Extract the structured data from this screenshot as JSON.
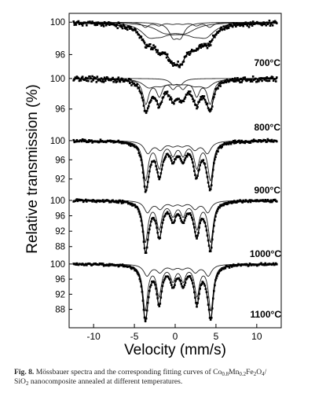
{
  "chart_data": {
    "type": "line",
    "ylabel": "Relative transmission (%)",
    "xlabel": "Velocity (mm/s)",
    "xlim": [
      -13,
      13
    ],
    "x_ticks": [
      -10,
      -5,
      0,
      5,
      10
    ],
    "x_tick_labels": [
      "-10",
      "-5",
      "0",
      "5",
      "10"
    ],
    "grid": false,
    "legend": "none",
    "panels": [
      {
        "label": "700°C",
        "ylim": [
          94.0,
          100.8
        ],
        "y_ticks": [
          100,
          96
        ],
        "y_tick_labels": [
          "100",
          "96"
        ],
        "sextets": [
          {
            "center": 0.3,
            "split": 7.9,
            "depth": 0.6,
            "width": 0.5
          },
          {
            "center": 0.3,
            "split": 7.0,
            "depth": 1.4,
            "width": 1.2
          }
        ],
        "doublets": [
          {
            "center": 0.2,
            "split": 0.9,
            "depth": 1.6,
            "width": 0.6
          },
          {
            "center": 0.0,
            "split": 2.4,
            "depth": 1.1,
            "width": 1.6
          }
        ]
      },
      {
        "label": "800°C",
        "ylim": [
          93.5,
          100.6
        ],
        "y_ticks": [
          100,
          96
        ],
        "y_tick_labels": [
          "100",
          "96"
        ],
        "sextets": [
          {
            "center": 0.35,
            "split": 7.9,
            "depth": 3.2,
            "width": 0.45
          },
          {
            "center": 0.3,
            "split": 7.1,
            "depth": 1.0,
            "width": 0.9
          }
        ],
        "doublets": [
          {
            "center": 0.2,
            "split": 0.9,
            "depth": 0.7,
            "width": 0.5
          }
        ]
      },
      {
        "label": "900°C",
        "ylim": [
          89.5,
          100.8
        ],
        "y_ticks": [
          100,
          96,
          92
        ],
        "y_tick_labels": [
          "100",
          "96",
          "92"
        ],
        "sextets": [
          {
            "center": 0.35,
            "split": 7.95,
            "depth": 8.0,
            "width": 0.4
          },
          {
            "center": 0.3,
            "split": 7.3,
            "depth": 2.5,
            "width": 0.55
          }
        ],
        "doublets": []
      },
      {
        "label": "1000°C",
        "ylim": [
          85.5,
          100.6
        ],
        "y_ticks": [
          100,
          96,
          92,
          88
        ],
        "y_tick_labels": [
          "100",
          "96",
          "92",
          "88"
        ],
        "sextets": [
          {
            "center": 0.35,
            "split": 8.0,
            "depth": 10.5,
            "width": 0.38
          },
          {
            "center": 0.3,
            "split": 7.4,
            "depth": 3.0,
            "width": 0.5
          }
        ],
        "doublets": []
      },
      {
        "label": "1100°C",
        "ylim": [
          85.0,
          100.6
        ],
        "y_ticks": [
          100,
          96,
          92,
          88
        ],
        "y_tick_labels": [
          "100",
          "96",
          "92",
          "88"
        ],
        "sextets": [
          {
            "center": 0.35,
            "split": 8.05,
            "depth": 12.0,
            "width": 0.36
          },
          {
            "center": 0.3,
            "split": 7.5,
            "depth": 3.0,
            "width": 0.5
          }
        ],
        "doublets": []
      }
    ]
  },
  "caption": {
    "label": "Fig. 8.",
    "line1": " Mössbauer spectra and the corresponding fitting curves of Co",
    "sub1": "0.8",
    "t2": "Mn",
    "sub2": "0.2",
    "t3": "Fe",
    "sub3": "2",
    "t4": "O",
    "sub4": "4",
    "t5": "/",
    "line2a": "SiO",
    "sub5": "2",
    "line2b": " nanocomposite annealed at different temperatures."
  }
}
